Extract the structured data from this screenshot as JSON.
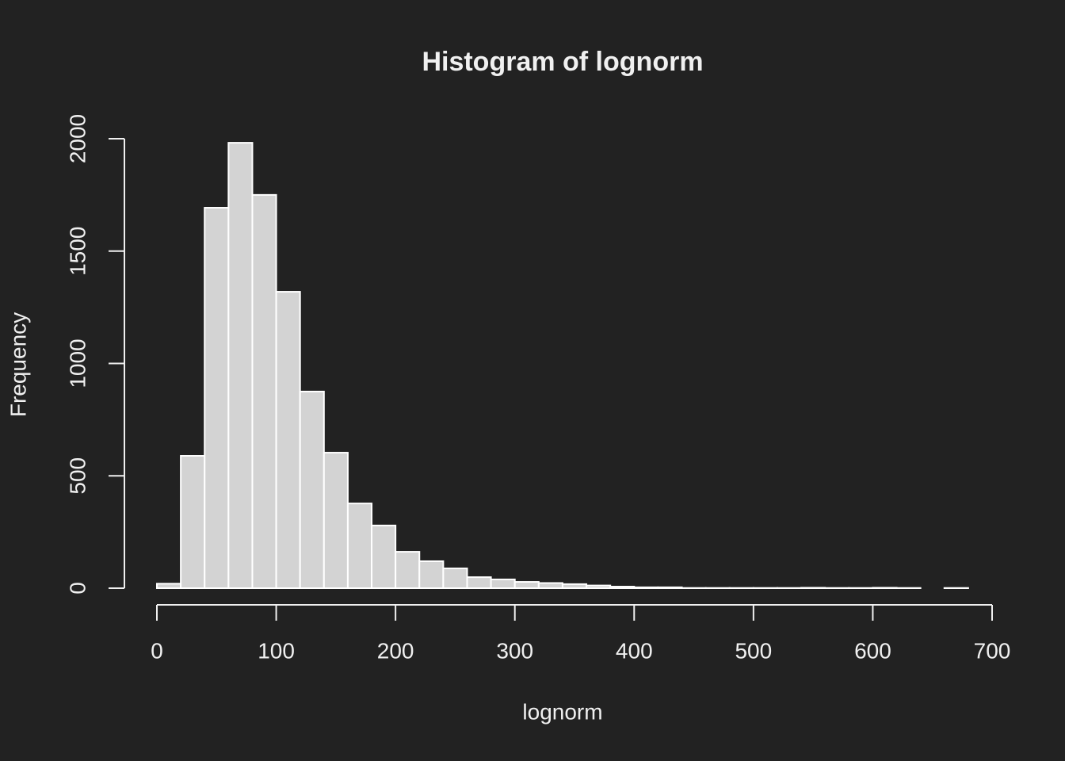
{
  "chart_data": {
    "type": "histogram",
    "title": "Histogram of lognorm",
    "x_label": "lognorm",
    "y_label": "Frequency",
    "bins": [
      0,
      20,
      40,
      60,
      80,
      100,
      120,
      140,
      160,
      180,
      200,
      220,
      240,
      260,
      280,
      300,
      320,
      340,
      360,
      380,
      400,
      420,
      440,
      460,
      480,
      500,
      520,
      540,
      560,
      580,
      600,
      620,
      640,
      660,
      680
    ],
    "counts": [
      20,
      589,
      1693,
      1982,
      1750,
      1319,
      875,
      603,
      377,
      279,
      162,
      120,
      88,
      49,
      39,
      28,
      23,
      18,
      12,
      7,
      4,
      4,
      1,
      1,
      1,
      1,
      1,
      2,
      1,
      1,
      2,
      1,
      0,
      1
    ],
    "color": "#d3d3d3",
    "xlim": [
      0,
      700
    ],
    "xticks": [
      0,
      100,
      200,
      300,
      400,
      500,
      600,
      700
    ],
    "ylim": [
      0,
      2000
    ],
    "yticks": [
      0,
      500,
      1000,
      1500,
      2000
    ]
  }
}
